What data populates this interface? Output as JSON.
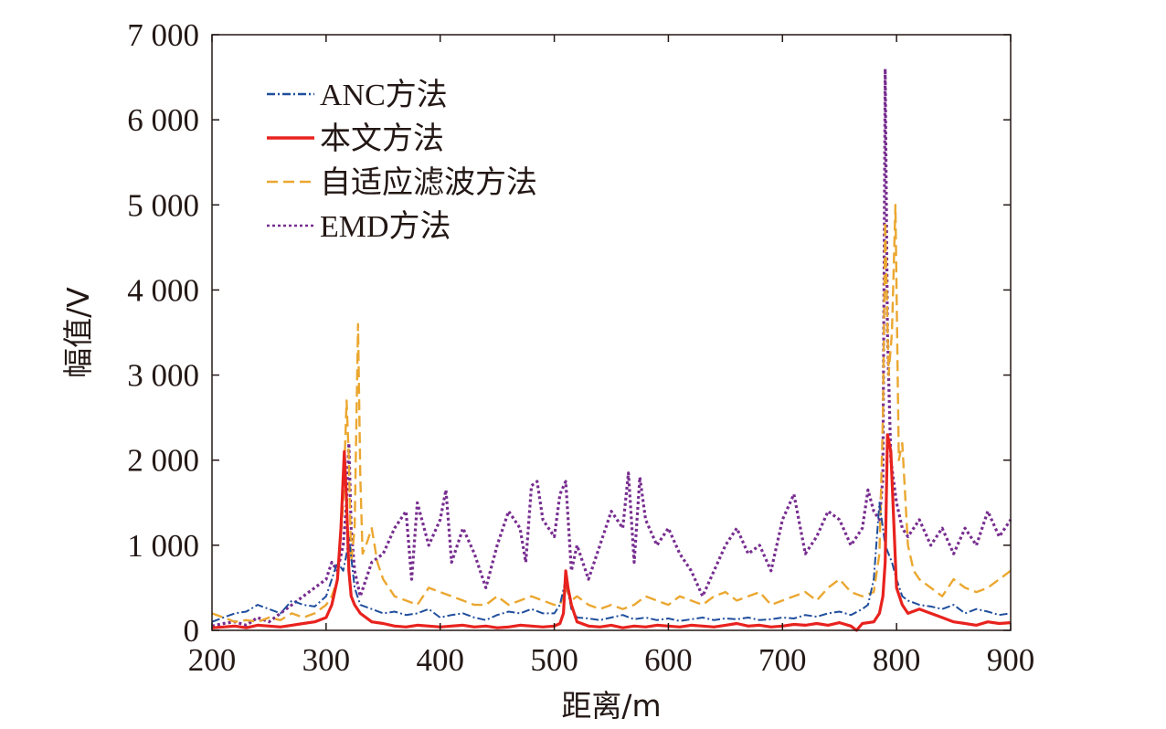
{
  "chart_data": {
    "type": "line",
    "title": "",
    "xlabel": "距离/m",
    "ylabel": "幅值/V",
    "xlim": [
      200,
      900
    ],
    "ylim": [
      0,
      7000
    ],
    "xticks": [
      200,
      300,
      400,
      500,
      600,
      700,
      800,
      900
    ],
    "xtick_labels": [
      "200",
      "300",
      "400",
      "500",
      "600",
      "700",
      "800",
      "900"
    ],
    "yticks": [
      0,
      1000,
      2000,
      3000,
      4000,
      5000,
      6000,
      7000
    ],
    "ytick_labels": [
      "0",
      "1 000",
      "2 000",
      "3 000",
      "4 000",
      "5 000",
      "6 000",
      "7 000"
    ],
    "grid": false,
    "legend_position": "top-left",
    "series": [
      {
        "name": "ANC方法",
        "color": "#1f4e9c",
        "dash": "dashdot",
        "x": [
          200,
          210,
          220,
          230,
          240,
          250,
          260,
          270,
          280,
          290,
          300,
          305,
          310,
          315,
          318,
          320,
          325,
          330,
          340,
          350,
          360,
          370,
          380,
          390,
          400,
          410,
          420,
          430,
          440,
          450,
          460,
          470,
          480,
          490,
          500,
          505,
          510,
          515,
          520,
          530,
          540,
          550,
          560,
          570,
          580,
          590,
          600,
          610,
          620,
          630,
          640,
          650,
          660,
          670,
          680,
          690,
          700,
          710,
          720,
          730,
          740,
          750,
          760,
          770,
          775,
          780,
          785,
          788,
          790,
          793,
          796,
          800,
          805,
          810,
          820,
          830,
          840,
          850,
          860,
          870,
          880,
          890,
          900
        ],
        "y": [
          100,
          150,
          200,
          220,
          300,
          250,
          200,
          350,
          300,
          280,
          400,
          600,
          800,
          700,
          900,
          1100,
          500,
          300,
          250,
          200,
          220,
          180,
          200,
          250,
          150,
          180,
          200,
          150,
          120,
          180,
          220,
          200,
          250,
          200,
          200,
          300,
          600,
          250,
          150,
          140,
          120,
          150,
          180,
          130,
          150,
          120,
          140,
          110,
          130,
          150,
          120,
          140,
          130,
          150,
          120,
          130,
          150,
          140,
          180,
          160,
          200,
          220,
          180,
          250,
          300,
          600,
          1500,
          1200,
          1000,
          900,
          800,
          600,
          400,
          350,
          300,
          280,
          250,
          300,
          200,
          250,
          220,
          180,
          200
        ]
      },
      {
        "name": "本文方法",
        "color": "#e8221e",
        "dash": "solid",
        "x": [
          200,
          210,
          220,
          230,
          240,
          250,
          260,
          270,
          280,
          290,
          300,
          305,
          310,
          313,
          316,
          318,
          320,
          322,
          325,
          330,
          340,
          350,
          360,
          370,
          380,
          390,
          400,
          410,
          420,
          430,
          440,
          450,
          460,
          470,
          480,
          490,
          500,
          505,
          508,
          510,
          512,
          515,
          520,
          530,
          540,
          550,
          560,
          570,
          580,
          590,
          600,
          610,
          620,
          630,
          640,
          650,
          660,
          670,
          680,
          690,
          700,
          710,
          720,
          730,
          740,
          750,
          760,
          765,
          770,
          780,
          785,
          788,
          790,
          792,
          795,
          800,
          805,
          810,
          820,
          830,
          840,
          850,
          860,
          870,
          880,
          890,
          900
        ],
        "y": [
          30,
          40,
          50,
          30,
          60,
          50,
          40,
          60,
          80,
          100,
          150,
          300,
          600,
          1200,
          2100,
          1500,
          700,
          400,
          300,
          200,
          100,
          80,
          50,
          40,
          60,
          50,
          40,
          50,
          60,
          40,
          50,
          30,
          40,
          60,
          50,
          40,
          50,
          80,
          200,
          700,
          500,
          300,
          100,
          50,
          40,
          60,
          30,
          50,
          40,
          60,
          50,
          40,
          60,
          50,
          40,
          60,
          80,
          50,
          60,
          40,
          50,
          70,
          60,
          80,
          60,
          90,
          50,
          0,
          80,
          100,
          200,
          400,
          800,
          2300,
          2100,
          500,
          300,
          200,
          250,
          200,
          150,
          100,
          80,
          60,
          100,
          80,
          90
        ]
      },
      {
        "name": "自适应滤波方法",
        "color": "#eba730",
        "dash": "dashed",
        "x": [
          200,
          210,
          220,
          230,
          240,
          250,
          260,
          270,
          280,
          290,
          300,
          305,
          310,
          315,
          318,
          320,
          322,
          325,
          328,
          330,
          332,
          335,
          340,
          345,
          350,
          360,
          370,
          380,
          390,
          400,
          410,
          420,
          430,
          440,
          450,
          460,
          470,
          480,
          490,
          500,
          505,
          510,
          515,
          520,
          530,
          540,
          550,
          560,
          570,
          580,
          590,
          600,
          610,
          620,
          630,
          640,
          650,
          660,
          670,
          680,
          690,
          700,
          710,
          720,
          730,
          740,
          750,
          760,
          770,
          780,
          785,
          788,
          790,
          793,
          796,
          799,
          802,
          805,
          810,
          815,
          820,
          830,
          840,
          850,
          860,
          870,
          880,
          890,
          900
        ],
        "y": [
          200,
          150,
          100,
          120,
          100,
          150,
          120,
          200,
          150,
          200,
          300,
          400,
          600,
          1500,
          2700,
          2000,
          800,
          1200,
          3600,
          1800,
          900,
          1000,
          1200,
          800,
          600,
          400,
          350,
          300,
          500,
          450,
          400,
          350,
          300,
          300,
          400,
          300,
          350,
          400,
          350,
          300,
          300,
          500,
          350,
          400,
          300,
          250,
          300,
          250,
          300,
          400,
          350,
          300,
          400,
          350,
          300,
          400,
          450,
          350,
          400,
          450,
          300,
          350,
          400,
          450,
          350,
          500,
          600,
          450,
          400,
          450,
          900,
          2500,
          4800,
          3000,
          3500,
          5000,
          2000,
          2200,
          1000,
          700,
          600,
          500,
          400,
          600,
          500,
          450,
          500,
          600,
          700
        ]
      },
      {
        "name": "EMD方法",
        "color": "#772d8f",
        "dash": "dotted",
        "x": [
          200,
          210,
          220,
          230,
          240,
          250,
          260,
          270,
          280,
          290,
          300,
          305,
          310,
          315,
          318,
          320,
          322,
          325,
          330,
          340,
          350,
          360,
          370,
          375,
          380,
          390,
          400,
          405,
          410,
          420,
          430,
          440,
          450,
          460,
          470,
          475,
          480,
          485,
          490,
          500,
          505,
          510,
          515,
          520,
          530,
          540,
          550,
          560,
          565,
          570,
          575,
          580,
          590,
          600,
          610,
          620,
          630,
          640,
          650,
          660,
          670,
          680,
          690,
          700,
          710,
          720,
          730,
          740,
          750,
          760,
          770,
          775,
          780,
          785,
          788,
          790,
          792,
          795,
          800,
          805,
          810,
          820,
          830,
          840,
          850,
          860,
          870,
          880,
          890,
          900
        ],
        "y": [
          50,
          80,
          100,
          60,
          150,
          100,
          200,
          300,
          400,
          500,
          600,
          800,
          700,
          1000,
          1500,
          2200,
          1200,
          700,
          400,
          800,
          900,
          1200,
          1400,
          600,
          1500,
          1000,
          1300,
          1650,
          800,
          1200,
          900,
          500,
          1000,
          1400,
          1200,
          800,
          1700,
          1750,
          1300,
          1100,
          1600,
          1750,
          700,
          1000,
          600,
          1000,
          1400,
          1200,
          1850,
          800,
          1800,
          1300,
          1000,
          1200,
          900,
          700,
          400,
          700,
          1000,
          1200,
          900,
          1000,
          700,
          1300,
          1600,
          900,
          1100,
          1400,
          1300,
          1000,
          1200,
          1650,
          1400,
          1300,
          1800,
          6600,
          3500,
          2000,
          1500,
          1200,
          1100,
          1300,
          1000,
          1200,
          900,
          1200,
          1000,
          1400,
          1100,
          1300
        ]
      }
    ]
  }
}
